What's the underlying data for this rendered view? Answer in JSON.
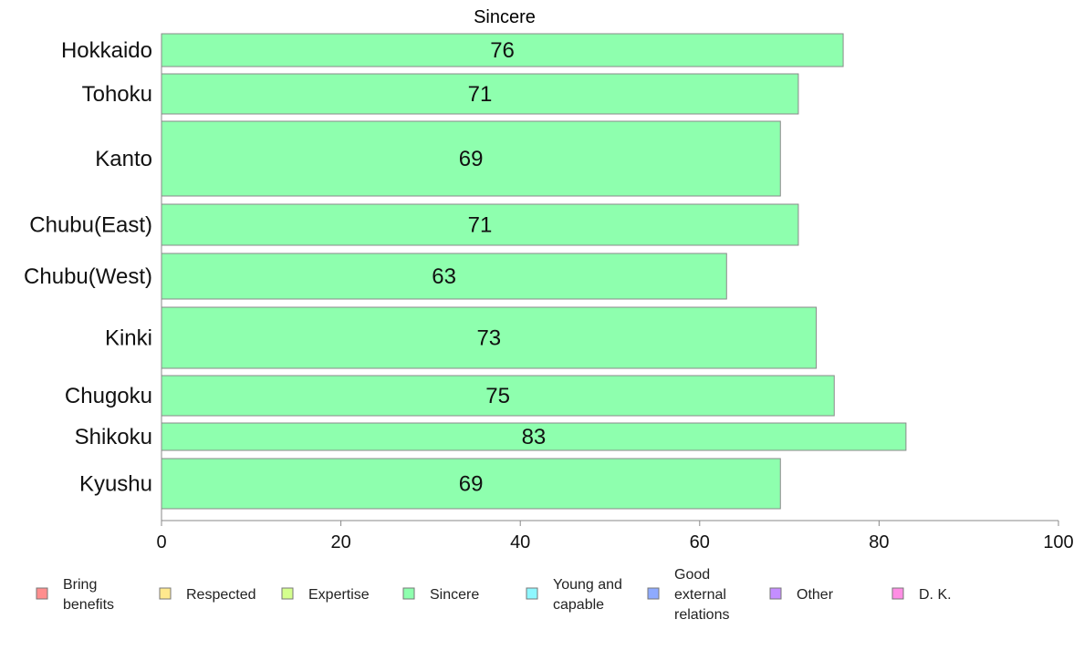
{
  "chart_data": {
    "type": "bar",
    "orientation": "horizontal",
    "title": "Sincere",
    "xlabel": "",
    "ylabel": "",
    "xlim": [
      0,
      100
    ],
    "x_ticks": [
      0,
      20,
      40,
      60,
      80,
      100
    ],
    "grid": false,
    "categories": [
      "Hokkaido",
      "Tohoku",
      "Kanto",
      "Chubu(East)",
      "Chubu(West)",
      "Kinki",
      "Chugoku",
      "Shikoku",
      "Kyushu"
    ],
    "values": [
      76,
      71,
      69,
      71,
      63,
      73,
      75,
      83,
      69
    ],
    "bar_color": "#8effae",
    "legend": {
      "placement": "bottom",
      "entries": [
        {
          "label": "Bring benefits",
          "color": "#ff8e8e"
        },
        {
          "label": "Respected",
          "color": "#ffe98e"
        },
        {
          "label": "Expertise",
          "color": "#d4ff8e"
        },
        {
          "label": "Sincere",
          "color": "#8effae"
        },
        {
          "label": "Young and capable",
          "color": "#8ef7ff"
        },
        {
          "label": "Good external relations",
          "color": "#8eaaff"
        },
        {
          "label": "Other",
          "color": "#c48eff"
        },
        {
          "label": "D. K.",
          "color": "#ff8ee4"
        }
      ]
    }
  }
}
